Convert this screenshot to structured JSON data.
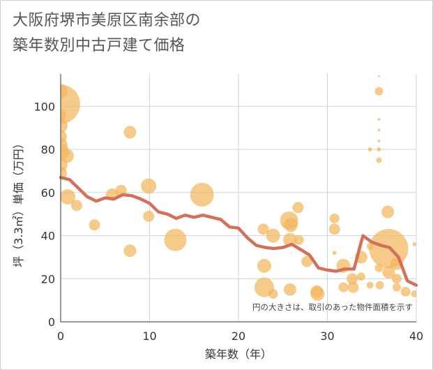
{
  "title_line1": "大阪府堺市美原区南余部の",
  "title_line2": "築年数別中古戸建て価格",
  "chart_data": {
    "type": "scatter",
    "xlabel": "築年数（年）",
    "ylabel": "坪（3.3㎡）単価（万円）",
    "xlim": [
      0,
      40
    ],
    "ylim": [
      0,
      115
    ],
    "xticks": [
      0,
      10,
      20,
      30,
      40
    ],
    "yticks": [
      0,
      20,
      40,
      60,
      80,
      100
    ],
    "grid": true,
    "note": "円の大きさは、取引のあった物件面積を示す",
    "bubble_color": "#f2b65c",
    "line_color": "#d3705a",
    "bubbles": [
      {
        "x": 0,
        "y": 107,
        "s": 10
      },
      {
        "x": 0,
        "y": 101,
        "s": 28
      },
      {
        "x": 0,
        "y": 96,
        "s": 8
      },
      {
        "x": 0,
        "y": 91,
        "s": 10
      },
      {
        "x": 0,
        "y": 86,
        "s": 9
      },
      {
        "x": 0,
        "y": 82,
        "s": 10
      },
      {
        "x": 0,
        "y": 79,
        "s": 12
      },
      {
        "x": 0,
        "y": 73,
        "s": 10
      },
      {
        "x": 0,
        "y": 69,
        "s": 9
      },
      {
        "x": 0.7,
        "y": 77,
        "s": 10
      },
      {
        "x": 0.8,
        "y": 58,
        "s": 11
      },
      {
        "x": 1.8,
        "y": 54,
        "s": 8
      },
      {
        "x": 3.8,
        "y": 45,
        "s": 8
      },
      {
        "x": 5.8,
        "y": 59,
        "s": 9
      },
      {
        "x": 6.8,
        "y": 61,
        "s": 8
      },
      {
        "x": 7.8,
        "y": 88,
        "s": 9
      },
      {
        "x": 7.8,
        "y": 33,
        "s": 9
      },
      {
        "x": 9.9,
        "y": 63,
        "s": 11
      },
      {
        "x": 9.9,
        "y": 49,
        "s": 8
      },
      {
        "x": 12.9,
        "y": 38,
        "s": 16
      },
      {
        "x": 15.9,
        "y": 59,
        "s": 17
      },
      {
        "x": 22.8,
        "y": 43,
        "s": 8
      },
      {
        "x": 22.9,
        "y": 26,
        "s": 10
      },
      {
        "x": 22.9,
        "y": 16,
        "s": 14
      },
      {
        "x": 23.9,
        "y": 13,
        "s": 7
      },
      {
        "x": 23.9,
        "y": 40,
        "s": 10
      },
      {
        "x": 25.7,
        "y": 47,
        "s": 13
      },
      {
        "x": 25.8,
        "y": 38,
        "s": 10
      },
      {
        "x": 25.8,
        "y": 15,
        "s": 9
      },
      {
        "x": 25.9,
        "y": 45,
        "s": 10
      },
      {
        "x": 26.7,
        "y": 53,
        "s": 8
      },
      {
        "x": 26.8,
        "y": 38,
        "s": 7
      },
      {
        "x": 27.7,
        "y": 28,
        "s": 8
      },
      {
        "x": 28.8,
        "y": 14,
        "s": 9
      },
      {
        "x": 28.9,
        "y": 13,
        "s": 10
      },
      {
        "x": 30.8,
        "y": 48,
        "s": 7
      },
      {
        "x": 30.8,
        "y": 43,
        "s": 8
      },
      {
        "x": 30.8,
        "y": 32,
        "s": 3
      },
      {
        "x": 31.8,
        "y": 26,
        "s": 10
      },
      {
        "x": 31.8,
        "y": 16,
        "s": 7
      },
      {
        "x": 32.8,
        "y": 20,
        "s": 8
      },
      {
        "x": 32.9,
        "y": 16,
        "s": 8
      },
      {
        "x": 33.8,
        "y": 21,
        "s": 6
      },
      {
        "x": 33.8,
        "y": 30,
        "s": 9
      },
      {
        "x": 34.8,
        "y": 80,
        "s": 3
      },
      {
        "x": 34.8,
        "y": 35,
        "s": 5
      },
      {
        "x": 34.8,
        "y": 17,
        "s": 5
      },
      {
        "x": 35.8,
        "y": 114,
        "s": 1.5
      },
      {
        "x": 35.8,
        "y": 107,
        "s": 6
      },
      {
        "x": 35.8,
        "y": 94,
        "s": 2
      },
      {
        "x": 35.8,
        "y": 89,
        "s": 2
      },
      {
        "x": 35.8,
        "y": 84,
        "s": 2
      },
      {
        "x": 35.8,
        "y": 80,
        "s": 3
      },
      {
        "x": 35.8,
        "y": 75,
        "s": 4
      },
      {
        "x": 35.8,
        "y": 25,
        "s": 6
      },
      {
        "x": 35.9,
        "y": 17,
        "s": 6
      },
      {
        "x": 36.8,
        "y": 51,
        "s": 9
      },
      {
        "x": 36.9,
        "y": 34,
        "s": 28
      },
      {
        "x": 36.9,
        "y": 23,
        "s": 9
      },
      {
        "x": 37.8,
        "y": 27,
        "s": 9
      },
      {
        "x": 37.8,
        "y": 16,
        "s": 6
      },
      {
        "x": 37.8,
        "y": 20,
        "s": 7
      },
      {
        "x": 38.8,
        "y": 14,
        "s": 7
      },
      {
        "x": 39.8,
        "y": 36,
        "s": 3
      },
      {
        "x": 39.8,
        "y": 13,
        "s": 5
      }
    ],
    "series": [
      {
        "type": "line",
        "x": [
          0,
          1,
          2,
          3,
          4,
          5,
          6,
          7,
          8,
          9,
          10,
          11,
          12,
          13,
          14,
          15,
          16,
          17,
          18,
          19,
          20,
          21,
          22,
          23,
          24,
          25,
          26,
          27,
          28,
          29,
          30,
          31,
          32,
          33,
          34,
          35,
          36,
          37,
          38,
          39,
          40
        ],
        "y": [
          67,
          66,
          62,
          58,
          56,
          57.5,
          57,
          59,
          58.5,
          57,
          55,
          51,
          50,
          48,
          49.5,
          48.5,
          49.5,
          48.5,
          47.5,
          44,
          43.5,
          39,
          35.5,
          34.5,
          34,
          34.5,
          36,
          33.5,
          31,
          25,
          24,
          23.5,
          24.5,
          24.5,
          40,
          37,
          35.5,
          34.5,
          30,
          19,
          17
        ]
      }
    ]
  }
}
